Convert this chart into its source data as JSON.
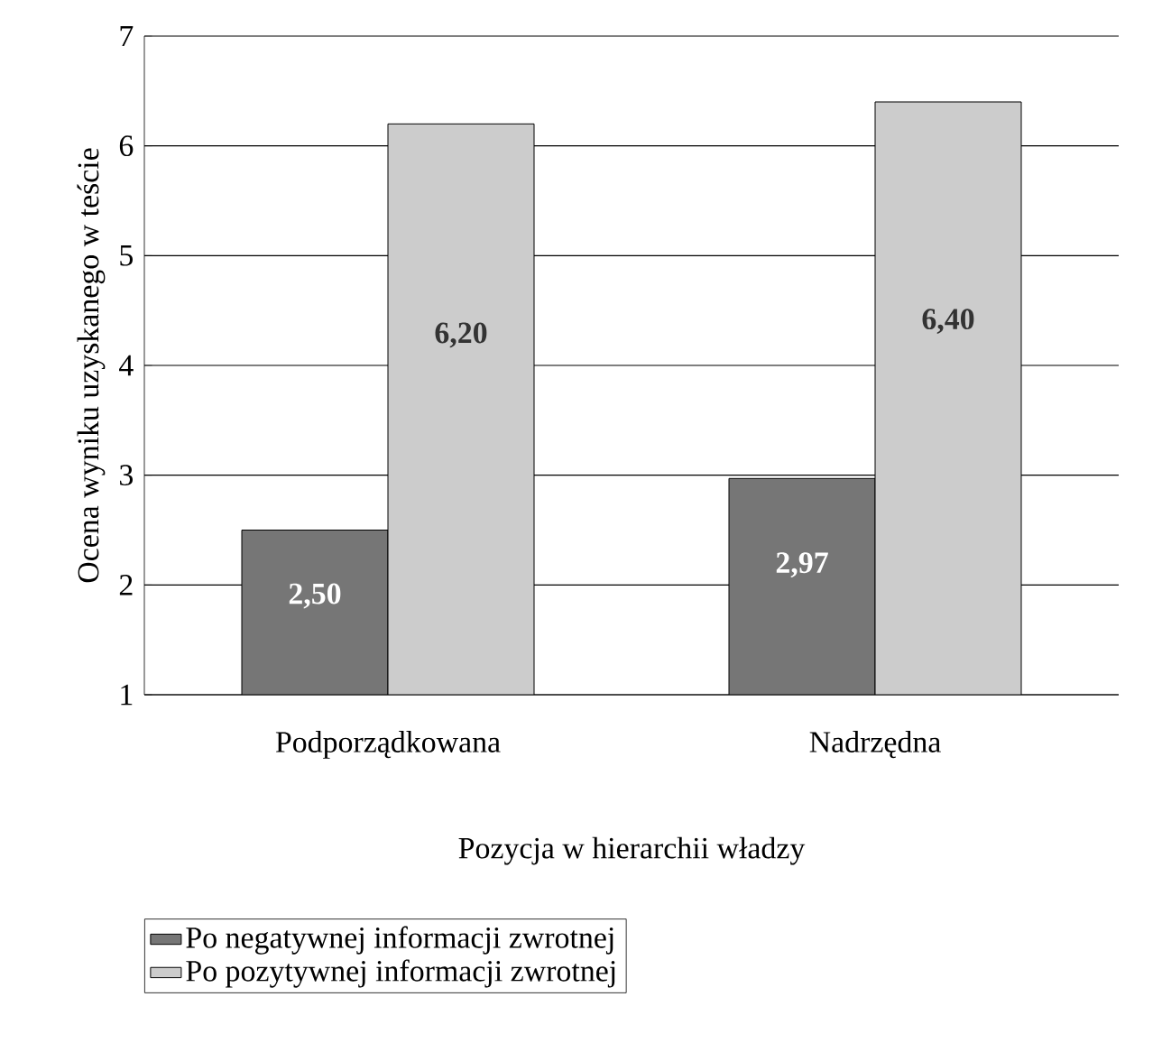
{
  "chart_data": {
    "type": "bar",
    "xlabel": "Pozycja w hierarchii władzy",
    "ylabel": "Ocena wyniku uzyskanego w teście",
    "categories": [
      "Podporządkowana",
      "Nadrzędna"
    ],
    "series": [
      {
        "name": "Po negatywnej informacji zwrotnej",
        "color": "#767676",
        "values": [
          2.5,
          2.97
        ],
        "value_labels": [
          "2,50",
          "2,97"
        ]
      },
      {
        "name": "Po pozytywnej informacji zwrotnej",
        "color": "#cccccc",
        "values": [
          6.2,
          6.4
        ],
        "value_labels": [
          "6,20",
          "6,40"
        ]
      }
    ],
    "ylim": [
      1,
      7
    ],
    "yticks": [
      1,
      2,
      3,
      4,
      5,
      6,
      7
    ],
    "grid": "y",
    "legend": "bottom left"
  }
}
